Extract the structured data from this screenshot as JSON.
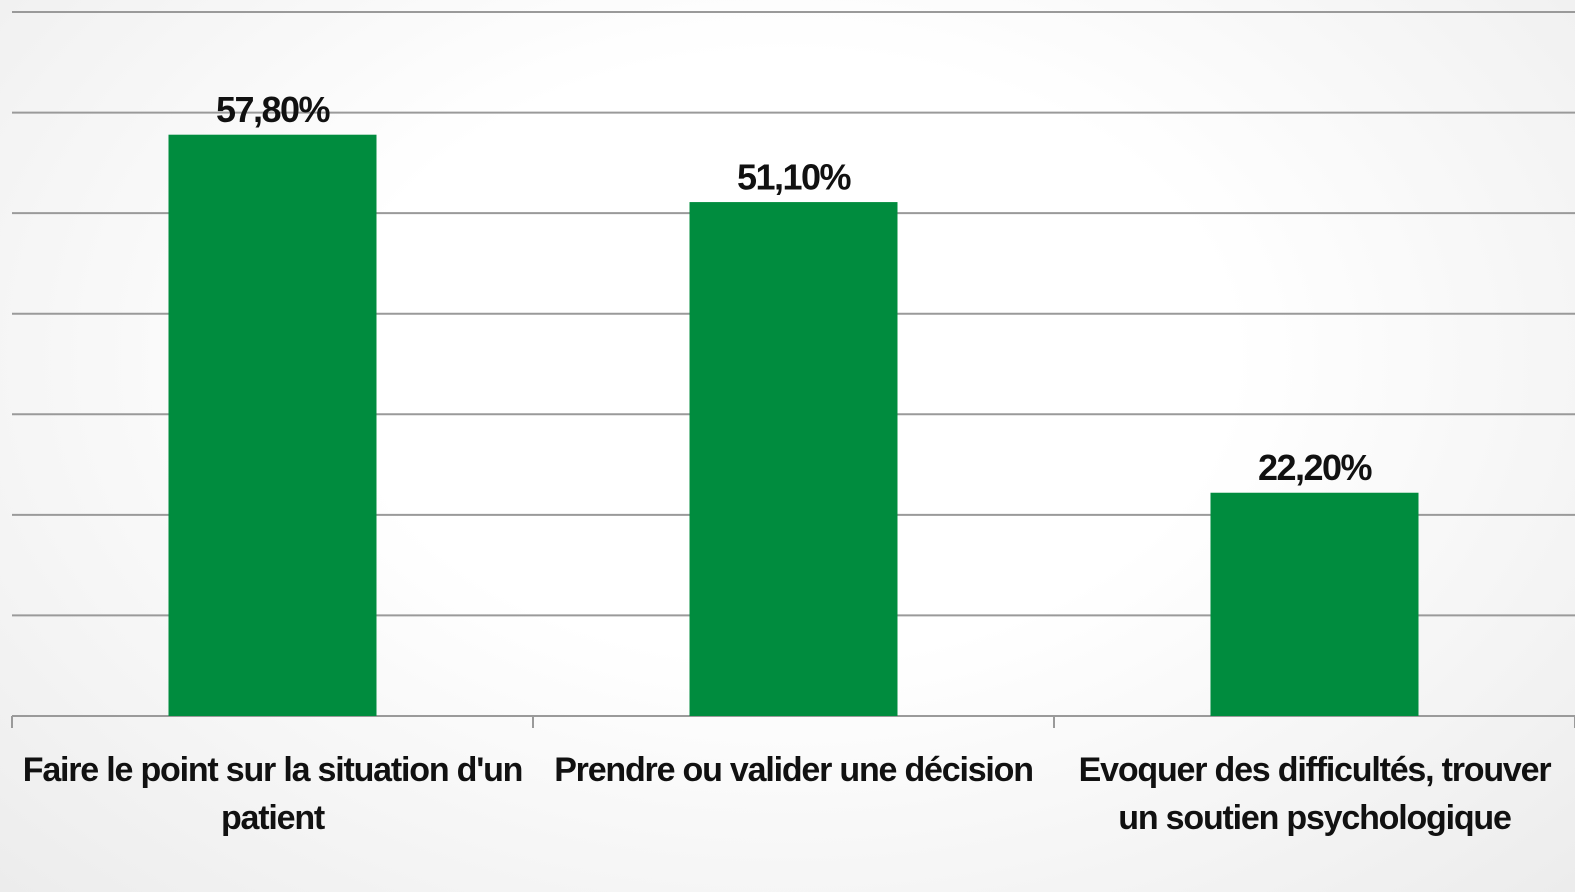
{
  "chart_data": {
    "type": "bar",
    "categories": [
      "Faire le point sur la situation d'un patient",
      "Prendre ou valider une décision",
      "Evoquer des difficultés, trouver un soutien psychologique"
    ],
    "values": [
      57.8,
      51.1,
      22.2
    ],
    "value_labels": [
      "57,80%",
      "51,10%",
      "22,20%"
    ],
    "color": "#008c3e",
    "ylim": [
      0,
      70
    ],
    "yticks": [
      0,
      10,
      20,
      30,
      40,
      50,
      60,
      70
    ],
    "grid": true
  }
}
